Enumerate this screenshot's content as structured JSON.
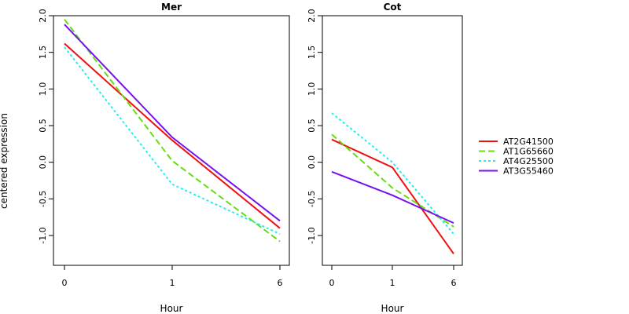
{
  "chart_data": [
    {
      "type": "line",
      "title": "Mer",
      "xlabel": "Hour",
      "ylabel": "centered expression",
      "x": [
        "0",
        "1",
        "6"
      ],
      "ylim": [
        -1.4,
        2.1
      ],
      "yticks": [
        -1.0,
        -0.5,
        0.0,
        0.5,
        1.0,
        1.5,
        2.0
      ],
      "ytick_labels": [
        "-1.0",
        "-0.5",
        "0.0",
        "0.5",
        "1.0",
        "1.5",
        "2.0"
      ],
      "series": [
        {
          "name": "AT2G41500",
          "values": [
            1.62,
            0.3,
            -0.9
          ]
        },
        {
          "name": "AT1G65660",
          "values": [
            1.95,
            0.02,
            -1.08
          ]
        },
        {
          "name": "AT4G25500",
          "values": [
            1.57,
            -0.3,
            -0.98
          ]
        },
        {
          "name": "AT3G55460",
          "values": [
            1.88,
            0.34,
            -0.8
          ]
        }
      ]
    },
    {
      "type": "line",
      "title": "Cot",
      "xlabel": "Hour",
      "ylabel": "",
      "x": [
        "0",
        "1",
        "6"
      ],
      "ylim": [
        -1.4,
        2.1
      ],
      "yticks": [
        -1.0,
        -0.5,
        0.0,
        0.5,
        1.0,
        1.5,
        2.0
      ],
      "ytick_labels": [
        "-1.0",
        "-0.5",
        "0.0",
        "0.5",
        "1.0",
        "1.5",
        "2.0"
      ],
      "series": [
        {
          "name": "AT2G41500",
          "values": [
            0.31,
            -0.07,
            -1.25
          ]
        },
        {
          "name": "AT1G65660",
          "values": [
            0.38,
            -0.35,
            -0.88
          ]
        },
        {
          "name": "AT4G25500",
          "values": [
            0.67,
            0.0,
            -0.98
          ]
        },
        {
          "name": "AT3G55460",
          "values": [
            -0.13,
            -0.45,
            -0.83
          ]
        }
      ]
    }
  ],
  "legend": {
    "position": "right",
    "entries": [
      {
        "label": "AT2G41500",
        "color": "#ee1111",
        "style": "solid"
      },
      {
        "label": "AT1G65660",
        "color": "#66dd11",
        "style": "dashed"
      },
      {
        "label": "AT4G25500",
        "color": "#22eeee",
        "style": "dotted"
      },
      {
        "label": "AT3G55460",
        "color": "#7711ee",
        "style": "solid"
      }
    ]
  }
}
